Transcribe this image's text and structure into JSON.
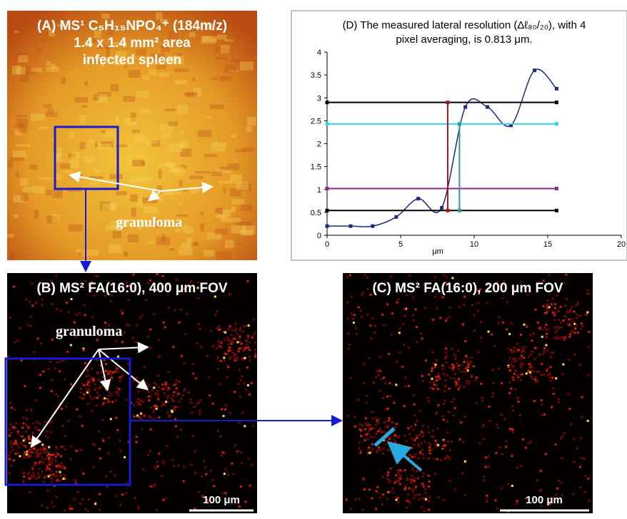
{
  "panels": [
    {
      "lines": [
        "(A) MS¹ C₅H₁₅NPO₄⁺ (184m/z)",
        "1.4 x 1.4 mm² area",
        "infected spleen"
      ],
      "label": "granuloma"
    },
    {
      "lines": [
        "(B) MS² FA(16:0), 400 μm FOV"
      ],
      "label": "granuloma",
      "scale": "100 μm"
    },
    {
      "lines": [
        "(C) MS² FA(16:0), 200 μm FOV"
      ],
      "scale": "100 μm"
    }
  ],
  "chart_data": {
    "type": "line",
    "title_lines": [
      "(D) The measured lateral resolution (Δℓ₈₀/₂₀), with 4",
      "pixel averaging, is 0.813 μm."
    ],
    "x_label": "μm",
    "xlim": [
      0,
      20
    ],
    "xticks": [
      0,
      5,
      10,
      15,
      20
    ],
    "ylim": [
      0,
      4
    ],
    "yticks": [
      0,
      0.5,
      1,
      1.5,
      2,
      2.5,
      3,
      3.5,
      4
    ],
    "series": [
      {
        "color": "#1f2a7a",
        "smooth": true,
        "x": [
          0,
          1.6,
          3.1,
          4.7,
          6.2,
          7.8,
          9.4,
          10.9,
          12.5,
          14.1,
          15.6
        ],
        "values": [
          0.2,
          0.2,
          0.2,
          0.4,
          0.8,
          0.6,
          2.8,
          2.8,
          2.4,
          3.6,
          3.2
        ]
      },
      {
        "color": "#000000",
        "x": [
          0,
          15.6
        ],
        "values": [
          2.9,
          2.9
        ]
      },
      {
        "color": "#33d6e0",
        "x": [
          0,
          15.6
        ],
        "values": [
          2.43,
          2.43
        ]
      },
      {
        "color": "#8b2a8b",
        "x": [
          0,
          15.6
        ],
        "values": [
          1.02,
          1.02
        ]
      },
      {
        "color": "#000000",
        "x": [
          0,
          15.6
        ],
        "values": [
          0.54,
          0.54
        ]
      },
      {
        "color": "#a01818",
        "x": [
          8.2,
          8.2
        ],
        "values": [
          0.54,
          2.9
        ]
      },
      {
        "color": "#2a9a9a",
        "x": [
          9.0,
          9.0
        ],
        "values": [
          0.54,
          2.43
        ]
      }
    ]
  }
}
